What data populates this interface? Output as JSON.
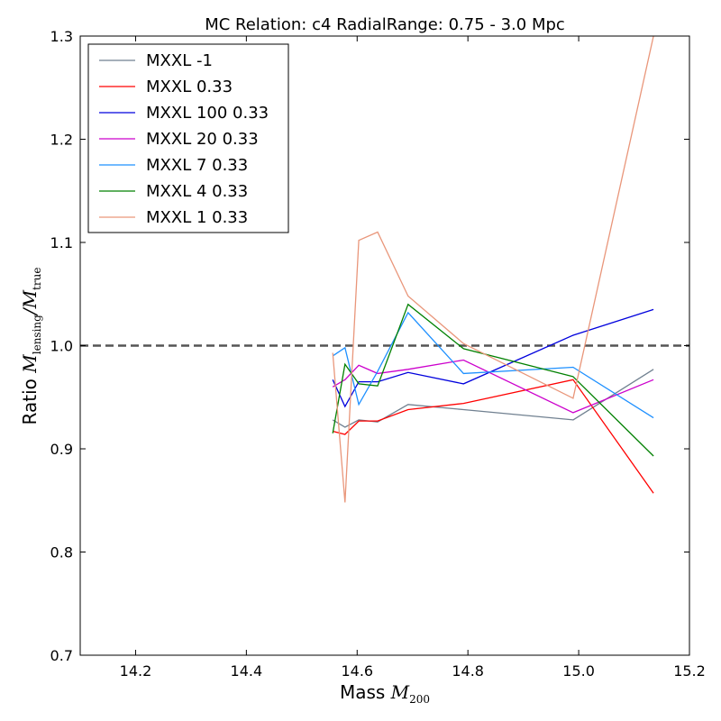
{
  "chart_data": {
    "type": "line",
    "title": "MC Relation: c4 RadialRange: 0.75 - 3.0 Mpc",
    "xlabel_prefix": "Mass ",
    "xlabel_symbol": "M",
    "xlabel_sub": "200",
    "ylabel_prefix": "Ratio ",
    "ylabel_num_symbol": "M",
    "ylabel_num_sub": "lensing",
    "ylabel_den_symbol": "M",
    "ylabel_den_sub": "true",
    "xlim": [
      14.1,
      15.2
    ],
    "ylim": [
      0.7,
      1.3
    ],
    "xticks": [
      14.2,
      14.4,
      14.6,
      14.8,
      15.0,
      15.2
    ],
    "yticks": [
      0.7,
      0.8,
      0.9,
      1.0,
      1.1,
      1.2,
      1.3
    ],
    "xtick_labels": [
      "14.2",
      "14.4",
      "14.6",
      "14.8",
      "15.0",
      "15.2"
    ],
    "ytick_labels": [
      "0.7",
      "0.8",
      "0.9",
      "1.0",
      "1.1",
      "1.2",
      "1.3"
    ],
    "reference_line": {
      "y": 1.0,
      "style": "dashed",
      "color": "#555555"
    },
    "legend_position": "top-left",
    "grid": false,
    "series": [
      {
        "name": "MXXL -1",
        "color": "#708090",
        "x": [
          14.556,
          14.578,
          14.603,
          14.637,
          14.692,
          14.792,
          14.99,
          15.135
        ],
        "y": [
          0.928,
          0.921,
          0.928,
          0.926,
          0.943,
          0.938,
          0.928,
          0.977
        ]
      },
      {
        "name": "MXXL 0.33",
        "color": "#ff0000",
        "x": [
          14.556,
          14.578,
          14.603,
          14.637,
          14.692,
          14.792,
          14.99,
          15.135
        ],
        "y": [
          0.917,
          0.914,
          0.927,
          0.927,
          0.938,
          0.944,
          0.967,
          0.857
        ]
      },
      {
        "name": "MXXL 100 0.33",
        "color": "#0000dd",
        "x": [
          14.556,
          14.578,
          14.603,
          14.637,
          14.692,
          14.792,
          14.99,
          15.135
        ],
        "y": [
          0.967,
          0.941,
          0.965,
          0.965,
          0.974,
          0.963,
          1.01,
          1.035
        ]
      },
      {
        "name": "MXXL 20 0.33",
        "color": "#cc00cc",
        "x": [
          14.556,
          14.578,
          14.603,
          14.637,
          14.692,
          14.792,
          14.99,
          15.135
        ],
        "y": [
          0.96,
          0.967,
          0.981,
          0.973,
          0.977,
          0.986,
          0.935,
          0.967
        ]
      },
      {
        "name": "MXXL 7 0.33",
        "color": "#1e90ff",
        "x": [
          14.556,
          14.578,
          14.603,
          14.637,
          14.692,
          14.792,
          14.99,
          15.135
        ],
        "y": [
          0.99,
          0.998,
          0.943,
          0.975,
          1.032,
          0.973,
          0.979,
          0.93
        ]
      },
      {
        "name": "MXXL 4 0.33",
        "color": "#008000",
        "x": [
          14.556,
          14.578,
          14.603,
          14.637,
          14.692,
          14.792,
          14.99,
          15.135
        ],
        "y": [
          0.915,
          0.982,
          0.963,
          0.961,
          1.04,
          0.997,
          0.97,
          0.893
        ]
      },
      {
        "name": "MXXL 1 0.33",
        "color": "#e9967a",
        "x": [
          14.556,
          14.578,
          14.603,
          14.637,
          14.692,
          14.792,
          14.99,
          15.135
        ],
        "y": [
          0.993,
          0.848,
          1.102,
          1.11,
          1.048,
          1.002,
          0.949,
          1.3
        ]
      }
    ]
  }
}
